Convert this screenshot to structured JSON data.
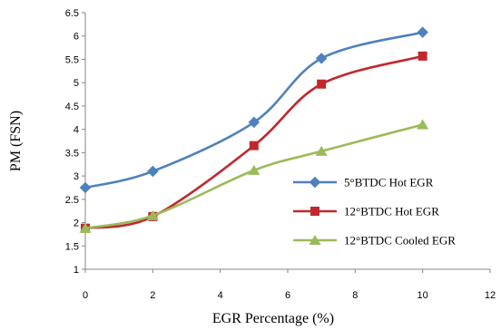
{
  "chart_data": {
    "type": "line",
    "xlabel": "EGR Percentage (%)",
    "ylabel": "PM (FSN)",
    "xlim": [
      0,
      12
    ],
    "ylim": [
      1,
      6.5
    ],
    "x_ticks": [
      "0",
      "2",
      "4",
      "6",
      "8",
      "10",
      "12"
    ],
    "y_ticks": [
      "1",
      "1.5",
      "2",
      "2.5",
      "3",
      "3.5",
      "4",
      "4.5",
      "5",
      "5.5",
      "6",
      "6.5"
    ],
    "grid": false,
    "legend_position": "lower-right",
    "x": [
      0,
      2,
      5,
      7,
      10
    ],
    "series": [
      {
        "name": "5°BTDC Hot EGR",
        "values": [
          2.75,
          3.1,
          4.15,
          5.52,
          6.08
        ],
        "color": "#4f81bd",
        "marker": "diamond"
      },
      {
        "name": "12°BTDC Hot EGR",
        "values": [
          1.88,
          2.13,
          3.65,
          4.97,
          5.57
        ],
        "color": "#c0282d",
        "marker": "square"
      },
      {
        "name": "12°BTDC Cooled EGR",
        "values": [
          1.88,
          2.15,
          3.12,
          3.53,
          4.1
        ],
        "color": "#9bbb59",
        "marker": "triangle"
      }
    ]
  }
}
